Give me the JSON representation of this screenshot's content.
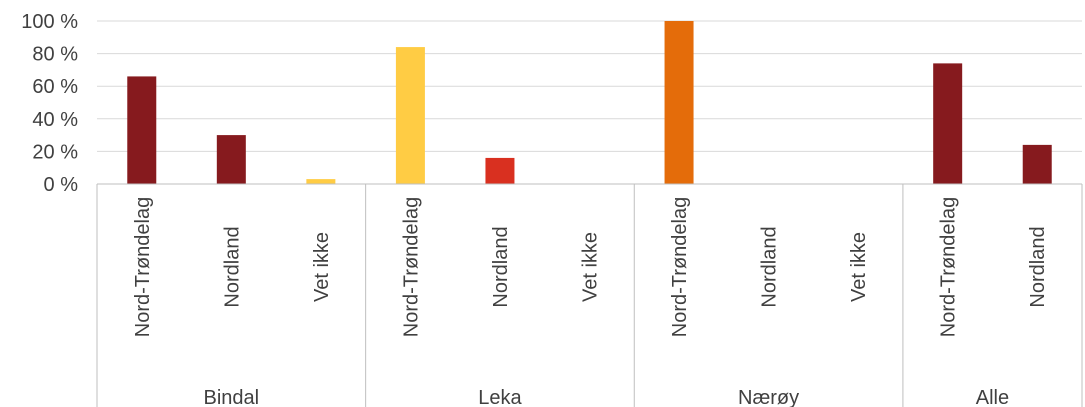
{
  "chart_data": {
    "type": "bar",
    "title": "",
    "xlabel": "",
    "ylabel": "",
    "ylim": [
      0,
      100
    ],
    "y_ticks": [
      {
        "value": 0,
        "label": "0 %"
      },
      {
        "value": 20,
        "label": "20 %"
      },
      {
        "value": 40,
        "label": "40 %"
      },
      {
        "value": 60,
        "label": "60 %"
      },
      {
        "value": 80,
        "label": "80 %"
      },
      {
        "value": 100,
        "label": "100 %"
      }
    ],
    "grid": true,
    "legend": "none",
    "colors": {
      "dark_red": "#861A1E",
      "yellow": "#FFCC44",
      "red": "#D93020",
      "orange": "#E46C0A",
      "grid": "#D9D9D9",
      "axis": "#BFBFBF"
    },
    "groups": [
      {
        "name": "Bindal",
        "bars": [
          {
            "category": "Nord-Trøndelag",
            "value": 66,
            "color": "#861A1E"
          },
          {
            "category": "Nordland",
            "value": 30,
            "color": "#861A1E"
          },
          {
            "category": "Vet ikke",
            "value": 3,
            "color": "#FFCC44"
          }
        ]
      },
      {
        "name": "Leka",
        "bars": [
          {
            "category": "Nord-Trøndelag",
            "value": 84,
            "color": "#FFCC44"
          },
          {
            "category": "Nordland",
            "value": 16,
            "color": "#D93020"
          },
          {
            "category": "Vet ikke",
            "value": 0,
            "color": "#D93020"
          }
        ]
      },
      {
        "name": "Nærøy",
        "bars": [
          {
            "category": "Nord-Trøndelag",
            "value": 100,
            "color": "#E46C0A"
          },
          {
            "category": "Nordland",
            "value": 0,
            "color": "#E46C0A"
          },
          {
            "category": "Vet ikke",
            "value": 0,
            "color": "#E46C0A"
          }
        ]
      },
      {
        "name": "Alle",
        "bars": [
          {
            "category": "Nord-Trøndelag",
            "value": 74,
            "color": "#861A1E"
          },
          {
            "category": "Nordland",
            "value": 24,
            "color": "#861A1E"
          }
        ]
      }
    ]
  }
}
